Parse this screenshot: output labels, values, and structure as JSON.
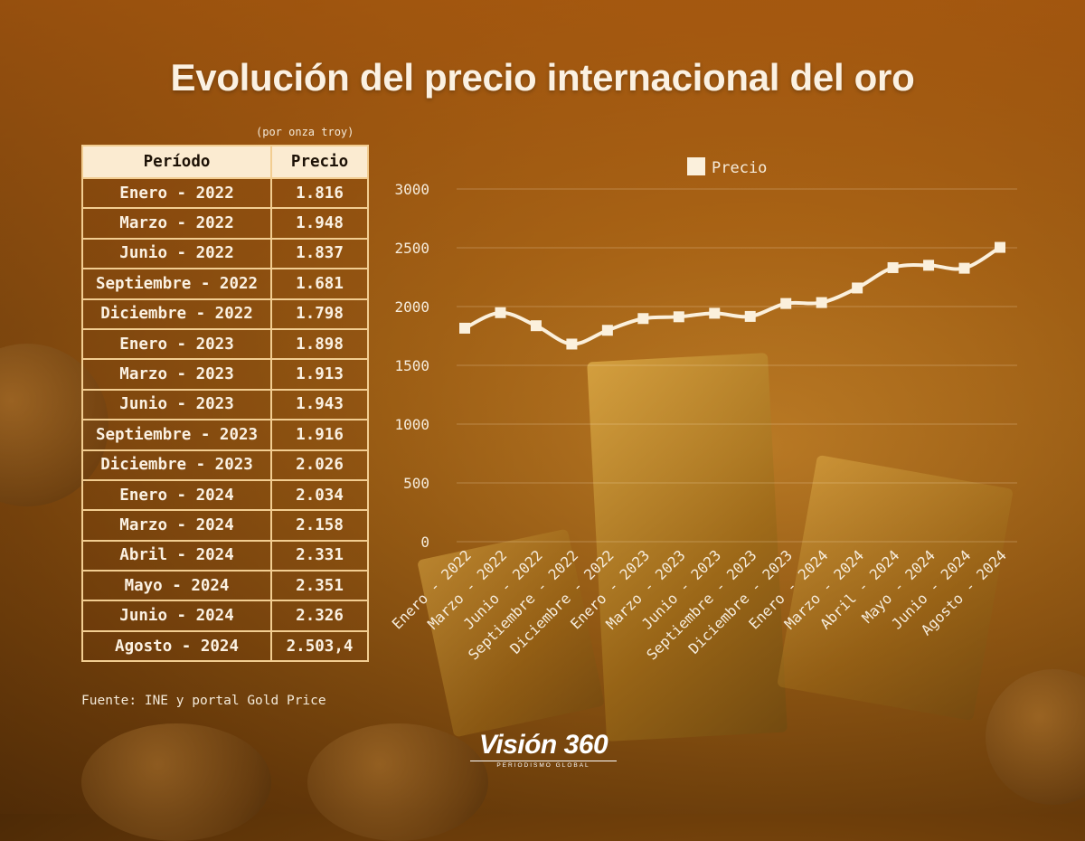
{
  "title": "Evolución del precio internacional del oro",
  "unit_note": "(por onza troy)",
  "table": {
    "headers": [
      "Período",
      "Precio"
    ],
    "rows": [
      [
        "Enero - 2022",
        "1.816"
      ],
      [
        "Marzo - 2022",
        "1.948"
      ],
      [
        "Junio - 2022",
        "1.837"
      ],
      [
        "Septiembre - 2022",
        "1.681"
      ],
      [
        "Diciembre - 2022",
        "1.798"
      ],
      [
        "Enero - 2023",
        "1.898"
      ],
      [
        "Marzo - 2023",
        "1.913"
      ],
      [
        "Junio - 2023",
        "1.943"
      ],
      [
        "Septiembre - 2023",
        "1.916"
      ],
      [
        "Diciembre - 2023",
        "2.026"
      ],
      [
        "Enero - 2024",
        "2.034"
      ],
      [
        "Marzo - 2024",
        "2.158"
      ],
      [
        "Abril - 2024",
        "2.331"
      ],
      [
        "Mayo - 2024",
        "2.351"
      ],
      [
        "Junio - 2024",
        "2.326"
      ],
      [
        "Agosto - 2024",
        "2.503,4"
      ]
    ]
  },
  "source": "Fuente: INE y portal Gold Price",
  "logo": {
    "main": "Visión 360",
    "tagline": "PERIODISMO GLOBAL"
  },
  "chart_data": {
    "type": "line",
    "categories": [
      "Enero - 2022",
      "Marzo - 2022",
      "Junio - 2022",
      "Septiembre - 2022",
      "Diciembre - 2022",
      "Enero - 2023",
      "Marzo - 2023",
      "Junio - 2023",
      "Septiembre - 2023",
      "Diciembre - 2023",
      "Enero - 2024",
      "Marzo - 2024",
      "Abril - 2024",
      "Mayo - 2024",
      "Junio - 2024",
      "Agosto - 2024"
    ],
    "series": [
      {
        "name": "Precio",
        "values": [
          1816,
          1948,
          1837,
          1681,
          1798,
          1898,
          1913,
          1943,
          1916,
          2026,
          2034,
          2158,
          2331,
          2351,
          2326,
          2503.4
        ]
      }
    ],
    "yticks": [
      0,
      500,
      1000,
      1500,
      2000,
      2500,
      3000
    ],
    "ylim": [
      0,
      3000
    ],
    "grid": true,
    "legend": "top",
    "line_color": "#fbf0dc"
  }
}
